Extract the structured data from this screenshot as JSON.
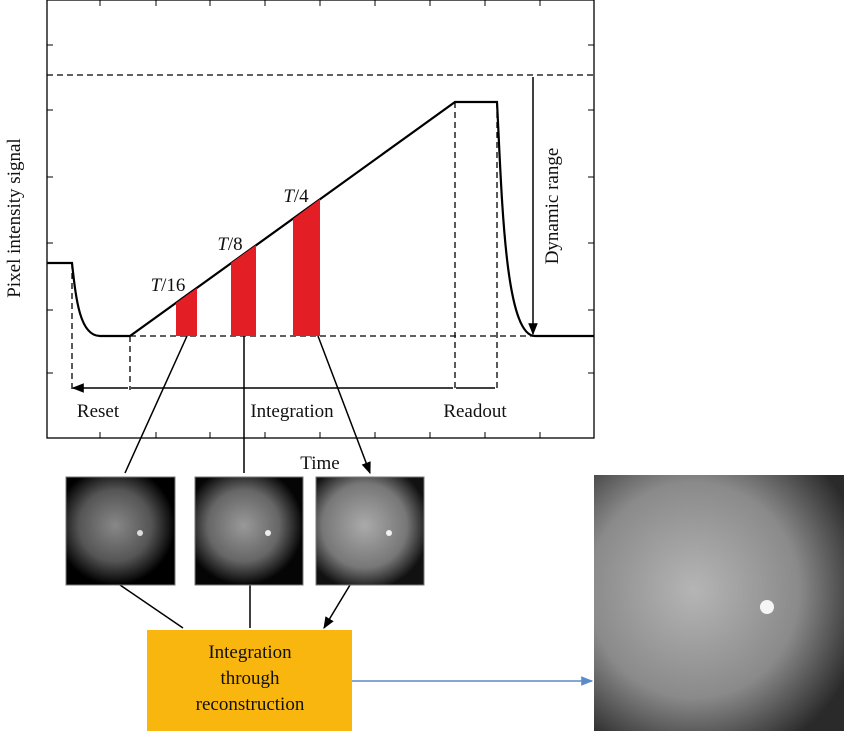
{
  "axes": {
    "y_label": "Pixel intensity signal",
    "x_label": "Time"
  },
  "exposures": [
    {
      "italic": "T",
      "rest": "/16"
    },
    {
      "italic": "T",
      "rest": "/8"
    },
    {
      "italic": "T",
      "rest": "/4"
    }
  ],
  "phases": [
    "Reset",
    "Integration",
    "Readout"
  ],
  "dynamic_range": "Dynamic range",
  "process_box": {
    "lines": [
      "Integration",
      "through",
      "reconstruction"
    ]
  }
}
